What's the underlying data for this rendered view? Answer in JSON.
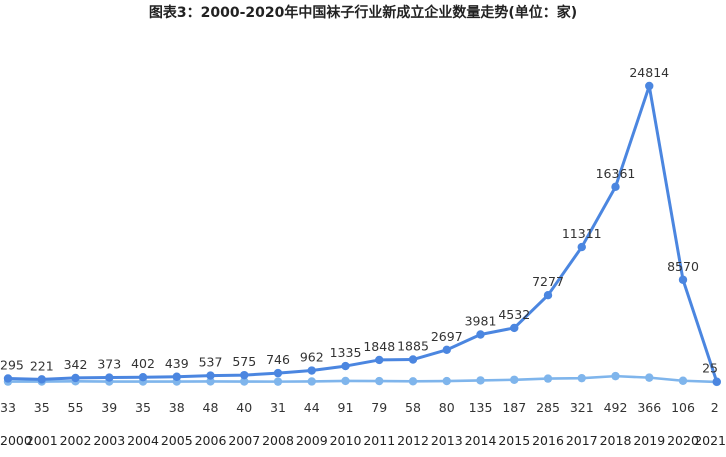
{
  "chart_data": {
    "type": "line",
    "title": "图表3：2000-2020年中国袜子行业新成立企业数量走势(单位：家)",
    "x": [
      "2000",
      "2001",
      "2002",
      "2003",
      "2004",
      "2005",
      "2006",
      "2007",
      "2008",
      "2009",
      "2010",
      "2011",
      "2012",
      "2013",
      "2014",
      "2015",
      "2016",
      "2017",
      "2018",
      "2019",
      "2020",
      "2021"
    ],
    "series": [
      {
        "values": [
          295,
          221,
          342,
          373,
          402,
          439,
          537,
          575,
          746,
          962,
          1335,
          1848,
          1885,
          2697,
          3981,
          4532,
          7277,
          11311,
          16361,
          24814,
          8570,
          25
        ],
        "color": "#4b86e0"
      },
      {
        "values": [
          33,
          35,
          55,
          39,
          35,
          38,
          48,
          40,
          31,
          44,
          91,
          79,
          58,
          80,
          135,
          187,
          285,
          321,
          492,
          366,
          106,
          2
        ],
        "color": "#7fb5ec"
      }
    ],
    "grid": false,
    "legend": "none"
  }
}
